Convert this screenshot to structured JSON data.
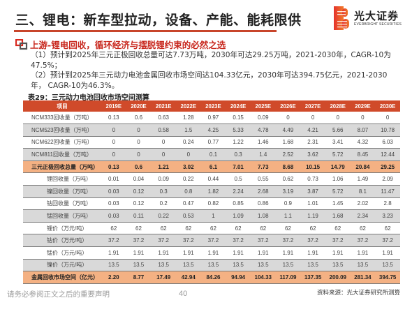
{
  "header": {
    "title": "三、锂电：新车型拉动，设备、产能、能耗限供",
    "logo": {
      "cn": "光大证券",
      "en": "EVERBRIGHT SECURITIES",
      "colors": [
        "#e5322d",
        "#f07a2a"
      ]
    },
    "accent_color": "#c8452b"
  },
  "section": {
    "icon": "overlapping-squares-icon",
    "heading": "上游-锂电回收，循环经济与摆脱锂约束的必然之选",
    "bullets": [
      "（1）预计到2025年三元正极回收总量可达7.73万吨，2030年可达29.25万吨，2021-2030年，CAGR-10为47.5%；",
      "（2）预计到2025年三元动力电池金属回收市场空间达104.33亿元，2030年可达394.75亿元，2021-2030年， CAGR-10为46.3%。"
    ]
  },
  "table": {
    "caption": "表29：三元动力电池回收市场空间测算",
    "columns": [
      "项目",
      "2019E",
      "2020E",
      "2021E",
      "2022E",
      "2023E",
      "2024E",
      "2025E",
      "2026E",
      "2027E",
      "2028E",
      "2029E",
      "2030E"
    ],
    "rows": [
      {
        "label": "NCM333回收量（万吨）",
        "values": [
          "0.13",
          "0.6",
          "0.63",
          "1.28",
          "0.97",
          "0.15",
          "0.09",
          "0",
          "0",
          "0",
          "0",
          "0"
        ]
      },
      {
        "label": "NCM523回收量（万吨）",
        "values": [
          "0",
          "0",
          "0.58",
          "1.5",
          "4.25",
          "5.33",
          "4.78",
          "4.49",
          "4.21",
          "5.66",
          "8.07",
          "10.78"
        ]
      },
      {
        "label": "NCM622回收量（万吨）",
        "values": [
          "0",
          "0",
          "0",
          "0.24",
          "0.77",
          "1.22",
          "1.46",
          "1.68",
          "2.31",
          "3.41",
          "4.32",
          "6.03"
        ]
      },
      {
        "label": "NCM811回收量（万吨）",
        "values": [
          "0",
          "0",
          "0",
          "0",
          "0.1",
          "0.3",
          "1.4",
          "2.52",
          "3.62",
          "5.72",
          "8.45",
          "12.44"
        ]
      },
      {
        "label": "三元正极回收总量（万吨）",
        "values": [
          "0.13",
          "0.6",
          "1.21",
          "3.02",
          "6.1",
          "7.01",
          "7.73",
          "8.68",
          "10.15",
          "14.79",
          "20.84",
          "29.25"
        ]
      },
      {
        "label": "锂回收量（万吨）",
        "values": [
          "0.01",
          "0.04",
          "0.09",
          "0.22",
          "0.44",
          "0.5",
          "0.55",
          "0.62",
          "0.73",
          "1.06",
          "1.49",
          "2.09"
        ]
      },
      {
        "label": "镍回收量（万吨）",
        "values": [
          "0.03",
          "0.12",
          "0.3",
          "0.8",
          "1.82",
          "2.24",
          "2.68",
          "3.19",
          "3.87",
          "5.72",
          "8.1",
          "11.47"
        ]
      },
      {
        "label": "钴回收量（万吨）",
        "values": [
          "0.03",
          "0.12",
          "0.2",
          "0.47",
          "0.82",
          "0.85",
          "0.86",
          "0.9",
          "1.01",
          "1.45",
          "2.02",
          "2.8"
        ]
      },
      {
        "label": "锰回收量（万吨）",
        "values": [
          "0.03",
          "0.11",
          "0.22",
          "0.53",
          "1",
          "1.09",
          "1.08",
          "1.1",
          "1.19",
          "1.68",
          "2.34",
          "3.23"
        ]
      },
      {
        "label": "锂价（万元/吨）",
        "values": [
          "62",
          "62",
          "62",
          "62",
          "62",
          "62",
          "62",
          "62",
          "62",
          "62",
          "62",
          "62"
        ]
      },
      {
        "label": "钴价（万元/吨）",
        "values": [
          "37.2",
          "37.2",
          "37.2",
          "37.2",
          "37.2",
          "37.2",
          "37.2",
          "37.2",
          "37.2",
          "37.2",
          "37.2",
          "37.2"
        ]
      },
      {
        "label": "锰价（万元/吨）",
        "values": [
          "1.91",
          "1.91",
          "1.91",
          "1.91",
          "1.91",
          "1.91",
          "1.91",
          "1.91",
          "1.91",
          "1.91",
          "1.91",
          "1.91"
        ]
      },
      {
        "label": "镍价（万元/吨）",
        "values": [
          "13.5",
          "13.5",
          "13.5",
          "13.5",
          "13.5",
          "13.5",
          "13.5",
          "13.5",
          "13.5",
          "13.5",
          "13.5",
          "13.5"
        ]
      },
      {
        "label": "金属回收市场空间（亿元）",
        "values": [
          "2.20",
          "8.77",
          "17.49",
          "42.94",
          "84.26",
          "94.94",
          "104.33",
          "117.09",
          "137.35",
          "200.09",
          "281.34",
          "394.75"
        ]
      }
    ],
    "colors": {
      "header_bg": "#d04a2a",
      "total_bg": "#f4b183",
      "stripe_bg": "#d9d9d9"
    }
  },
  "footer": {
    "disclaimer": "请务必参阅正文之后的重要声明",
    "page_number": "40",
    "source": "资料来源：光大证券研究所测算"
  }
}
